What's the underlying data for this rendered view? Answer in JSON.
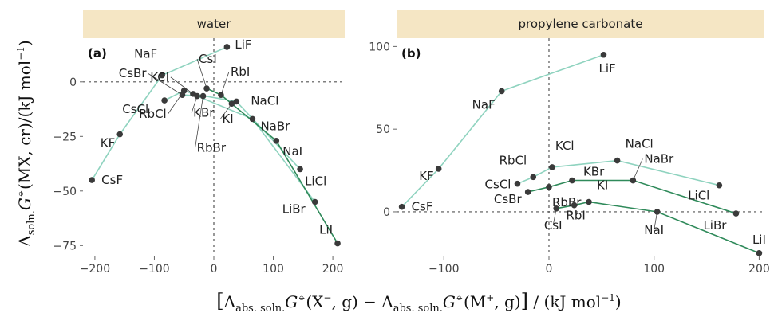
{
  "colors": {
    "strip_bg": "#f5e6c4",
    "line_light": "#8fd3bf",
    "line_dark": "#2f8a5a",
    "point": "#3a3a3a",
    "zero_line": "#555555"
  },
  "ylabel": {
    "main": "Δ",
    "sub": "soln.",
    "rest1": "G",
    "std": "⦵",
    "rest2": "(MX, cr)/(kJ mol",
    "exp": "−1",
    "close": ")"
  },
  "xlabel": {
    "open": "[",
    "d1": "Δ",
    "sub1": "abs. soln.",
    "g1": "G",
    "std1": "⦵",
    "x1": "(X",
    "sup1": "−",
    "g1close": ", g) − ",
    "d2": "Δ",
    "sub2": "abs. soln.",
    "g2": "G",
    "std2": "⦵",
    "x2": "(M",
    "sup2": "+",
    "g2close": ", g)",
    "close": "]",
    "units": " / (kJ mol",
    "units_exp": "−1",
    "units_close": ")"
  },
  "chart_data": [
    {
      "type": "scatter",
      "panel_label": "(a)",
      "strip_title": "water",
      "xlim": [
        -220,
        220
      ],
      "ylim": [
        -80,
        20
      ],
      "xticks": [
        -200,
        -100,
        0,
        100,
        200
      ],
      "yticks": [
        0,
        -25,
        -50,
        -75
      ],
      "points": [
        {
          "label": "CsF",
          "x": -205,
          "y": -45
        },
        {
          "label": "KF",
          "x": -158,
          "y": -24
        },
        {
          "label": "CsCl",
          "x": -83,
          "y": -8.5
        },
        {
          "label": "NaF",
          "x": -87,
          "y": 3
        },
        {
          "label": "CsBr",
          "x": -53,
          "y": -6
        },
        {
          "label": "RbCl",
          "x": -50,
          "y": -4
        },
        {
          "label": "KCl",
          "x": -35,
          "y": -5.5
        },
        {
          "label": "KBr",
          "x": -28,
          "y": -6.5
        },
        {
          "label": "RbBr",
          "x": -18,
          "y": -6.5
        },
        {
          "label": "CsI",
          "x": -12,
          "y": -3
        },
        {
          "label": "RbI",
          "x": 12,
          "y": -6
        },
        {
          "label": "KI",
          "x": 30,
          "y": -10
        },
        {
          "label": "NaCl",
          "x": 38,
          "y": -9
        },
        {
          "label": "LiF",
          "x": 22,
          "y": 16
        },
        {
          "label": "NaBr",
          "x": 65,
          "y": -17
        },
        {
          "label": "NaI",
          "x": 105,
          "y": -27
        },
        {
          "label": "LiCl",
          "x": 145,
          "y": -40
        },
        {
          "label": "LiBr",
          "x": 170,
          "y": -55
        },
        {
          "label": "LiI",
          "x": 208,
          "y": -74
        }
      ],
      "series": [
        {
          "color": "#8fd3bf",
          "points": [
            "CsF",
            "KF",
            "NaF",
            "LiF"
          ]
        },
        {
          "color": "#8fd3bf",
          "points": [
            "CsCl",
            "RbCl",
            "KCl",
            "NaCl",
            "LiCl"
          ]
        },
        {
          "color": "#8fd3bf",
          "points": [
            "CsBr",
            "RbBr",
            "KBr",
            "NaBr",
            "LiBr"
          ]
        },
        {
          "color": "#2f8a5a",
          "points": [
            "CsI",
            "RbI",
            "KI",
            "NaI",
            "LiI"
          ]
        }
      ]
    },
    {
      "type": "scatter",
      "panel_label": "(b)",
      "strip_title": "propylene carbonate",
      "xlim": [
        -145,
        205
      ],
      "ylim": [
        -27,
        105
      ],
      "xticks": [
        -100,
        0,
        100,
        200
      ],
      "yticks": [
        100,
        50,
        0
      ],
      "points": [
        {
          "label": "CsF",
          "x": -140,
          "y": 3
        },
        {
          "label": "KF",
          "x": -105,
          "y": 26
        },
        {
          "label": "NaF",
          "x": -45,
          "y": 73
        },
        {
          "label": "LiF",
          "x": 52,
          "y": 95
        },
        {
          "label": "CsCl",
          "x": -30,
          "y": 17
        },
        {
          "label": "RbCl",
          "x": -15,
          "y": 21
        },
        {
          "label": "KCl",
          "x": 3,
          "y": 27
        },
        {
          "label": "NaCl",
          "x": 65,
          "y": 31
        },
        {
          "label": "LiCl",
          "x": 162,
          "y": 16
        },
        {
          "label": "CsBr",
          "x": -20,
          "y": 12
        },
        {
          "label": "RbBr",
          "x": 0,
          "y": 15
        },
        {
          "label": "KBr",
          "x": 22,
          "y": 19
        },
        {
          "label": "NaBr",
          "x": 80,
          "y": 19
        },
        {
          "label": "LiBr",
          "x": 178,
          "y": -1
        },
        {
          "label": "CsI",
          "x": 7,
          "y": 2
        },
        {
          "label": "RbI",
          "x": 24,
          "y": 4
        },
        {
          "label": "KI",
          "x": 38,
          "y": 6
        },
        {
          "label": "NaI",
          "x": 103,
          "y": 0
        },
        {
          "label": "LiI",
          "x": 200,
          "y": -25
        }
      ],
      "series": [
        {
          "color": "#8fd3bf",
          "points": [
            "CsF",
            "KF",
            "NaF",
            "LiF"
          ]
        },
        {
          "color": "#8fd3bf",
          "points": [
            "CsCl",
            "RbCl",
            "KCl",
            "NaCl",
            "LiCl"
          ]
        },
        {
          "color": "#2f8a5a",
          "points": [
            "CsBr",
            "RbBr",
            "KBr",
            "NaBr",
            "LiBr"
          ]
        },
        {
          "color": "#2f8a5a",
          "points": [
            "CsI",
            "RbI",
            "KI",
            "NaI",
            "LiI"
          ]
        }
      ]
    }
  ]
}
